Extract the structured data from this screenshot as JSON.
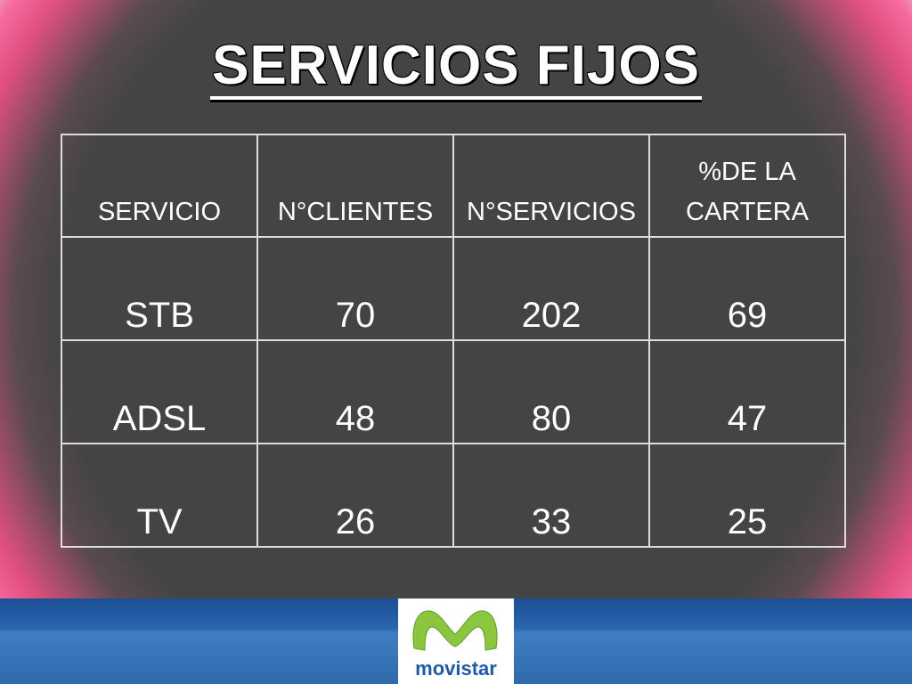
{
  "title": "SERVICIOS FIJOS",
  "table": {
    "header": [
      "SERVICIO",
      "N°CLIENTES",
      "N°SERVICIOS",
      "%DE LA CARTERA"
    ],
    "rows": [
      [
        "STB",
        70,
        202,
        69
      ],
      [
        "ADSL",
        48,
        80,
        47
      ],
      [
        "TV",
        26,
        33,
        25
      ]
    ]
  },
  "logo": {
    "text": "movistar"
  }
}
